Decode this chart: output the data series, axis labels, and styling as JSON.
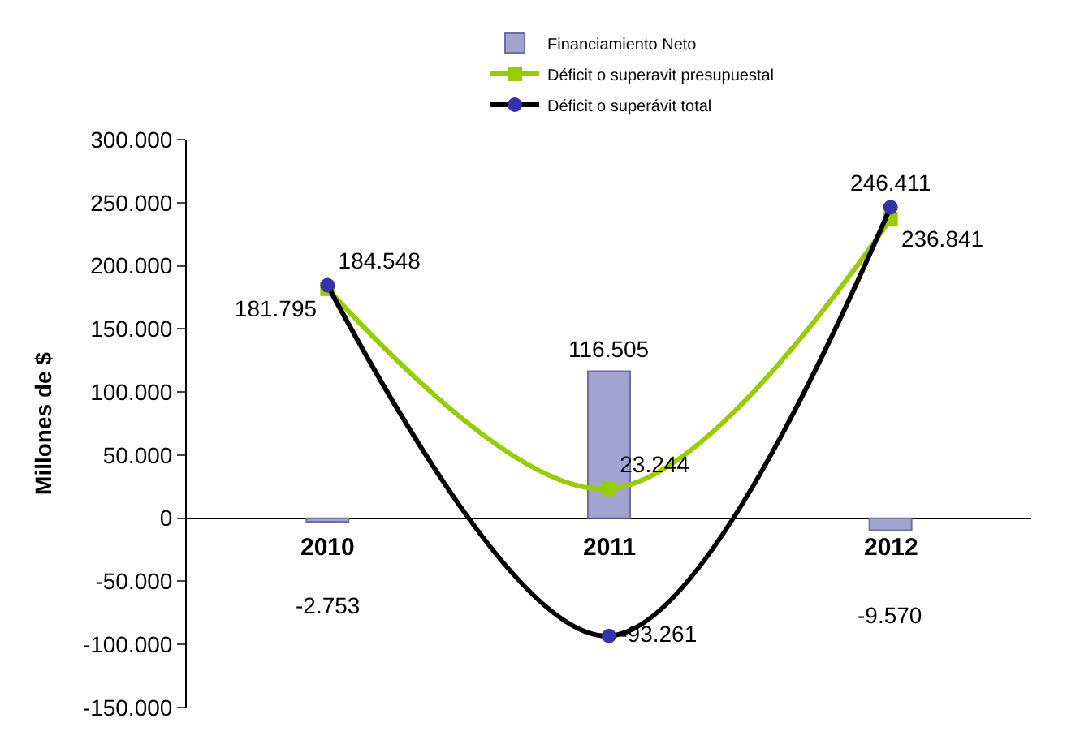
{
  "chart_data": {
    "type": "bar",
    "ylabel": "Millones de $",
    "categories": [
      "2010",
      "2011",
      "2012"
    ],
    "series": [
      {
        "name": "Financiamiento Neto",
        "color": "#a3a3d1",
        "values": [
          -2753,
          116505,
          -9570
        ],
        "value_labels": [
          "-2.753",
          "116.505",
          "-9.570"
        ]
      },
      {
        "name": "Déficit o superavit presupuestal",
        "type": "line",
        "color": "#99cc00",
        "marker": "square",
        "values": [
          181795,
          23244,
          236841
        ],
        "value_labels": [
          "181.795",
          "23.244",
          "236.841"
        ]
      },
      {
        "name": "Déficit o superávit total",
        "type": "line",
        "color": "#000000",
        "marker": "circle",
        "values": [
          184548,
          -93261,
          246411
        ],
        "value_labels": [
          "184.548",
          "-93.261",
          "246.411"
        ]
      }
    ],
    "ylim": [
      -150000,
      300000
    ],
    "yticks": [
      {
        "value": -150000,
        "label": "-150.000"
      },
      {
        "value": -100000,
        "label": "-100.000"
      },
      {
        "value": -50000,
        "label": "-50.000"
      },
      {
        "value": 0,
        "label": "0"
      },
      {
        "value": 50000,
        "label": "50.000"
      },
      {
        "value": 100000,
        "label": "100.000"
      },
      {
        "value": 150000,
        "label": "150.000"
      },
      {
        "value": 200000,
        "label": "200.000"
      },
      {
        "value": 250000,
        "label": "250.000"
      },
      {
        "value": 300000,
        "label": "300.000"
      }
    ],
    "legend": "top"
  }
}
